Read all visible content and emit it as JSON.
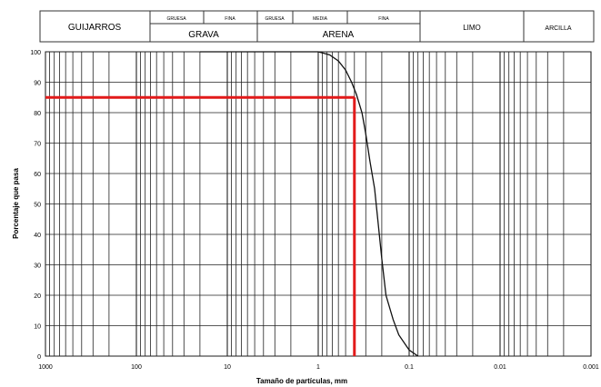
{
  "classification_header": {
    "cells": [
      {
        "id": "guijarros",
        "label": "GUIJARROS"
      },
      {
        "id": "grava",
        "label": "GRAVA",
        "sub": [
          "GRUESA",
          "FINA"
        ]
      },
      {
        "id": "arena",
        "label": "ARENA",
        "sub": [
          "GRUESA",
          "MEDIA",
          "FINA"
        ]
      },
      {
        "id": "limo",
        "label": "LIMO"
      },
      {
        "id": "arcilla",
        "label": "ARCILLA"
      }
    ]
  },
  "chart_data": {
    "type": "line",
    "xlabel": "Tamaño de partículas, mm",
    "ylabel": "Porcentaje que pasa",
    "x_scale": "log",
    "x_reversed": true,
    "xlim": [
      1000,
      0.001
    ],
    "ylim": [
      0,
      100
    ],
    "x_tick_labels": [
      "1000",
      "100",
      "10",
      "1",
      "0.1",
      "0.01",
      "0.001"
    ],
    "y_tick_labels": [
      "0",
      "10",
      "20",
      "30",
      "40",
      "50",
      "60",
      "70",
      "80",
      "90",
      "100"
    ],
    "grid": true,
    "series": [
      {
        "color": "#111111",
        "x": [
          20,
          1,
          0.75,
          0.6,
          0.5,
          0.43,
          0.38,
          0.33,
          0.3,
          0.27,
          0.24,
          0.22,
          0.2,
          0.18,
          0.15,
          0.13,
          0.1,
          0.08
        ],
        "y": [
          100,
          100,
          99,
          97,
          94,
          90,
          86,
          80,
          73,
          64,
          55,
          44,
          32,
          20,
          12,
          7,
          2,
          0
        ]
      }
    ],
    "annotations": [
      {
        "type": "reference",
        "color": "#e21a1a",
        "x": 0.4,
        "y": 85
      }
    ]
  }
}
